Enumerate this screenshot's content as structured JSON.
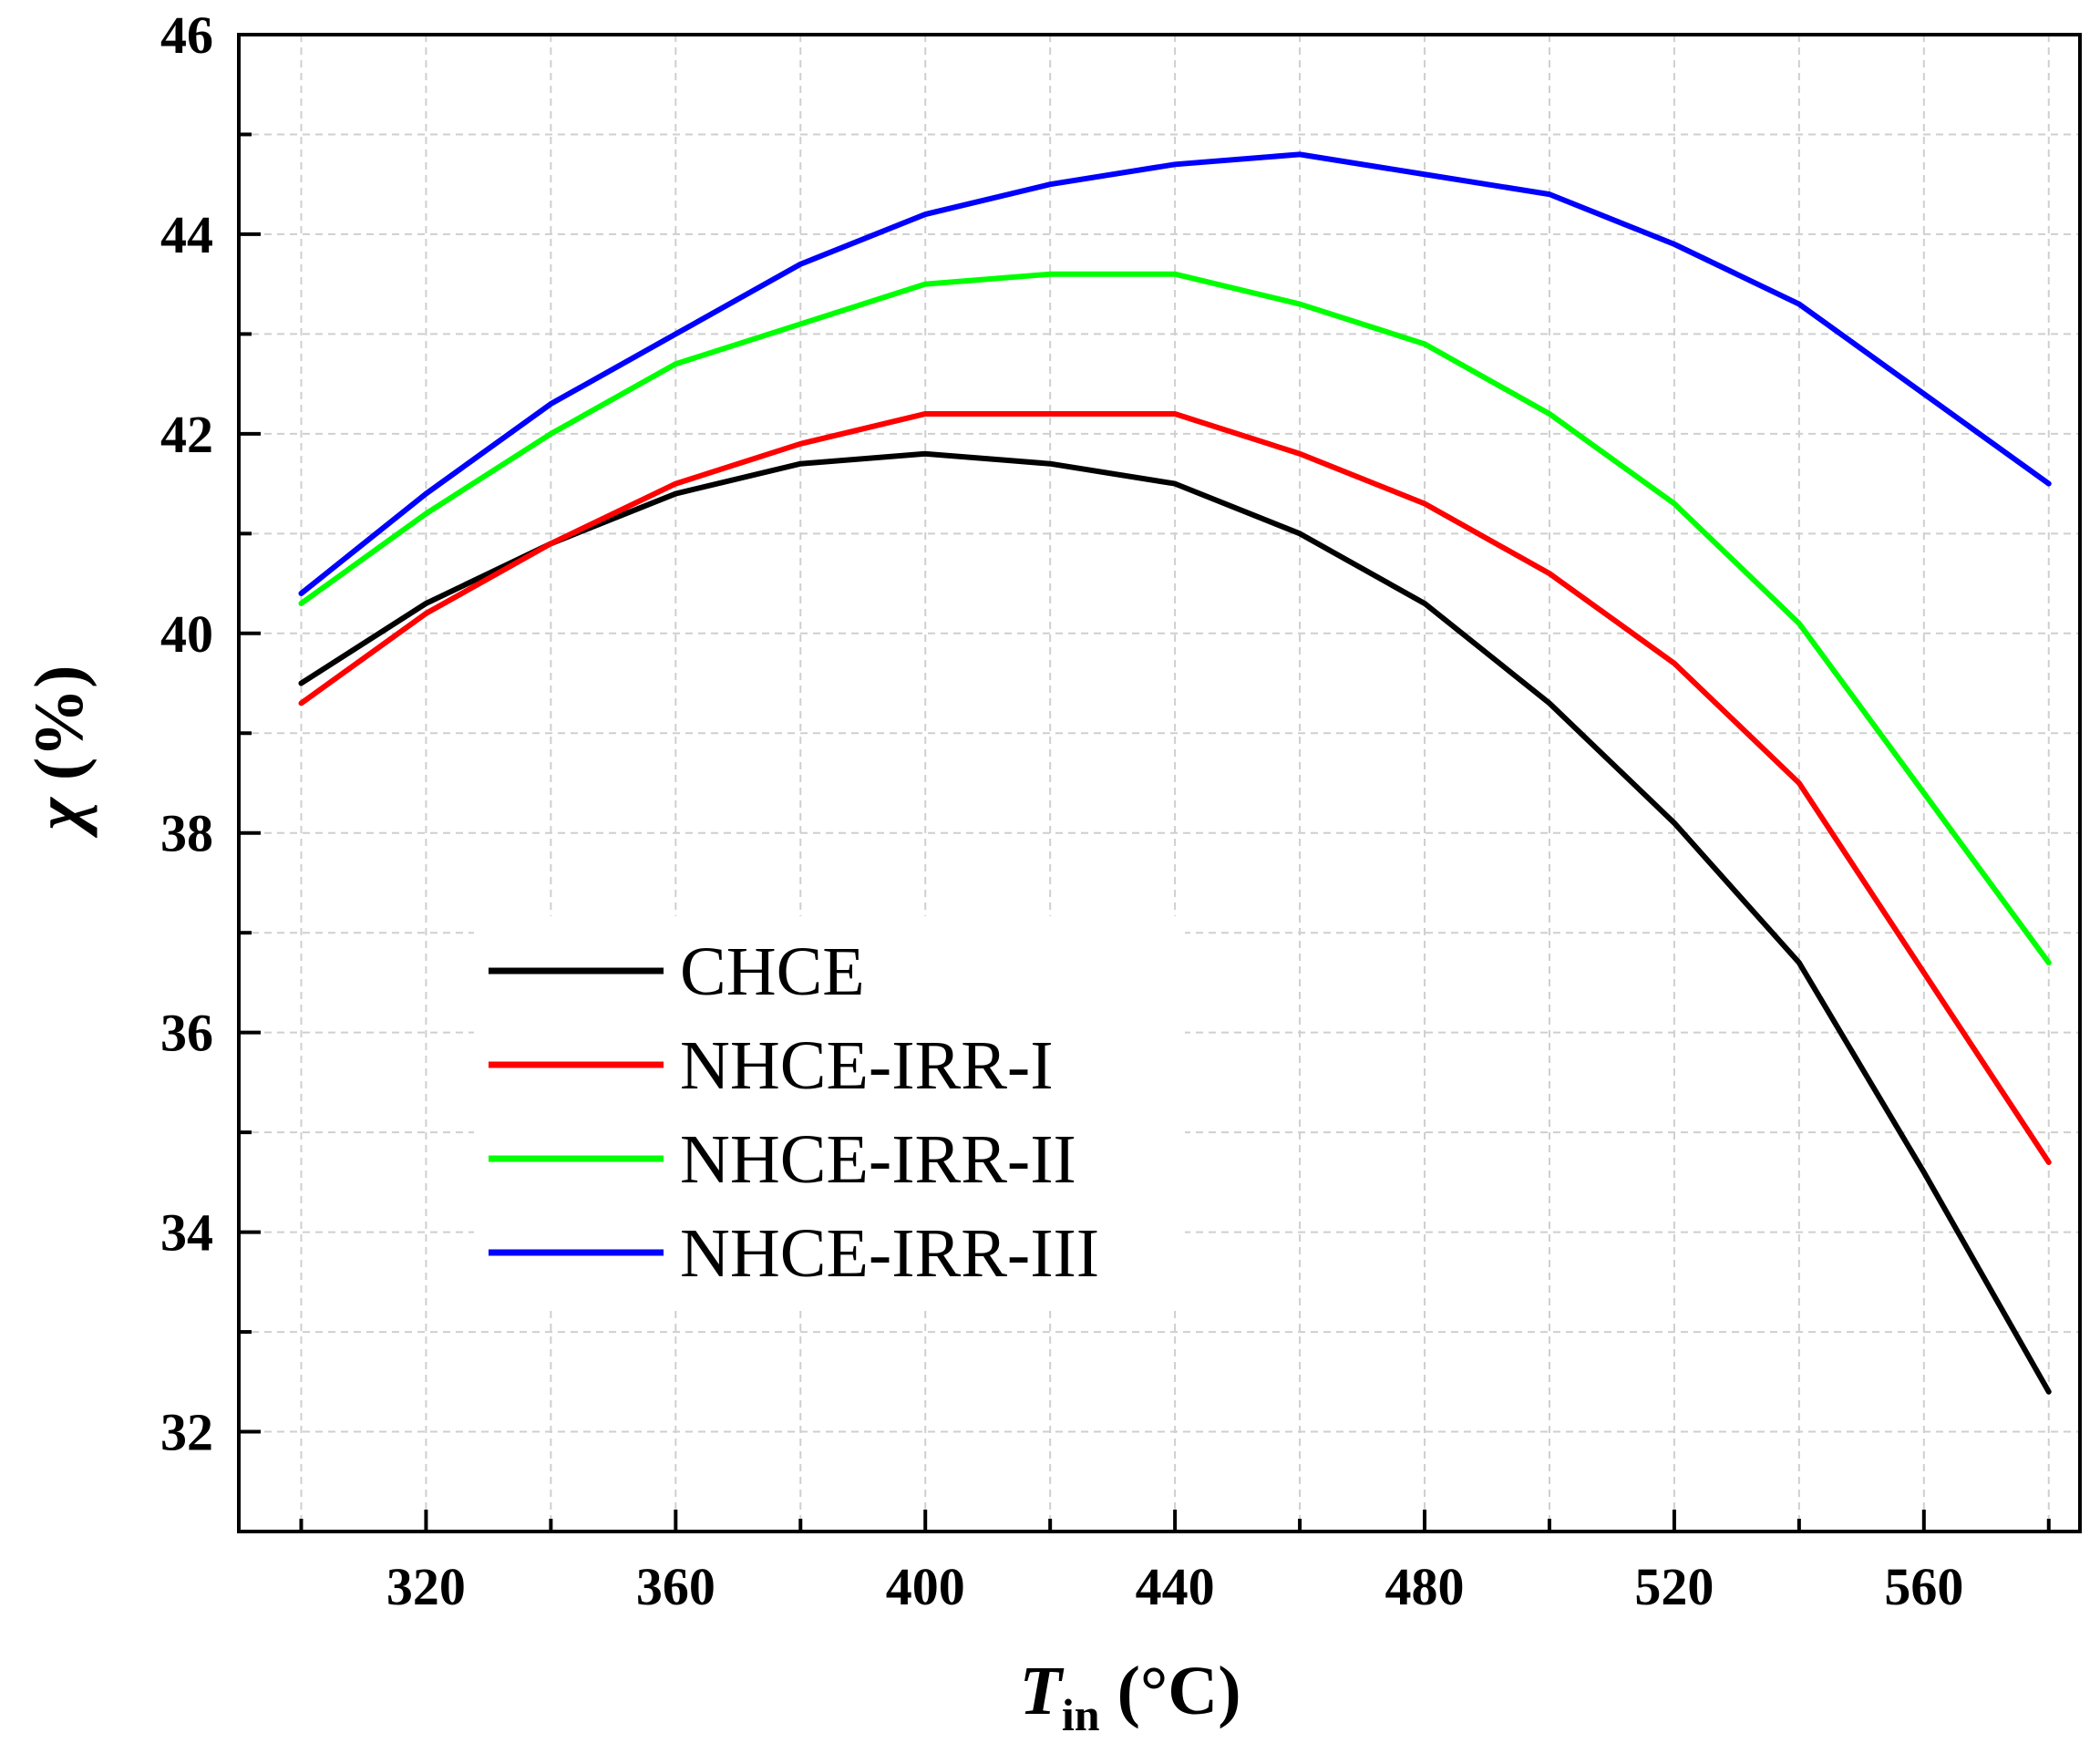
{
  "chart_data": {
    "type": "line",
    "title": "",
    "xlabel": "T_in (°C)",
    "xlabel_main": "T",
    "xlabel_sub": "in",
    "xlabel_unit": "(°C)",
    "ylabel": "χ (%)",
    "ylabel_symbol": "χ",
    "ylabel_unit": "(%)",
    "xlim": [
      290,
      585
    ],
    "ylim": [
      31,
      46
    ],
    "xticks": [
      320,
      360,
      400,
      440,
      480,
      520,
      560
    ],
    "xtick_labels": [
      "320",
      "360",
      "400",
      "440",
      "480",
      "520",
      "560"
    ],
    "yticks": [
      32,
      34,
      36,
      38,
      40,
      42,
      44,
      46
    ],
    "ytick_labels": [
      "32",
      "34",
      "36",
      "38",
      "40",
      "42",
      "44",
      "46"
    ],
    "grid": true,
    "legend_position": "lower-left",
    "x": [
      300,
      320,
      340,
      360,
      380,
      400,
      420,
      440,
      460,
      480,
      500,
      520,
      540,
      560,
      580
    ],
    "series": [
      {
        "name": "CHCE",
        "color": "#000000",
        "values": [
          39.5,
          40.3,
          40.9,
          41.4,
          41.7,
          41.8,
          41.7,
          41.5,
          41.0,
          40.3,
          39.3,
          38.1,
          36.7,
          34.6,
          32.4
        ]
      },
      {
        "name": "NHCE-IRR-I",
        "color": "#ff0000",
        "values": [
          39.3,
          40.2,
          40.9,
          41.5,
          41.9,
          42.2,
          42.2,
          42.2,
          41.8,
          41.3,
          40.6,
          39.7,
          38.5,
          36.6,
          34.7
        ]
      },
      {
        "name": "NHCE-IRR-II",
        "color": "#00ff00",
        "values": [
          40.3,
          41.2,
          42.0,
          42.7,
          43.1,
          43.5,
          43.6,
          43.6,
          43.3,
          42.9,
          42.2,
          41.3,
          40.1,
          38.4,
          36.7
        ]
      },
      {
        "name": "NHCE-IRR-III",
        "color": "#0000ff",
        "values": [
          40.4,
          41.4,
          42.3,
          43.0,
          43.7,
          44.2,
          44.5,
          44.7,
          44.8,
          44.6,
          44.4,
          43.9,
          43.3,
          42.4,
          41.5
        ]
      }
    ]
  }
}
